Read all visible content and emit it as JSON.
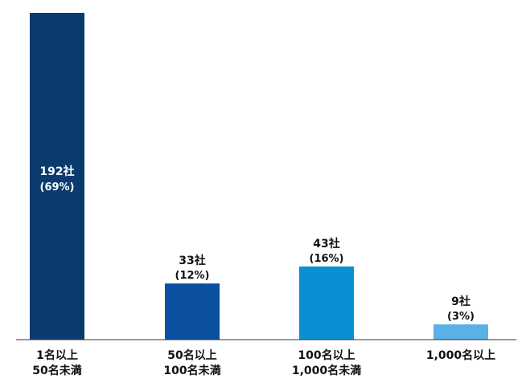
{
  "chart_data": {
    "type": "bar",
    "categories": [
      [
        "1名以上",
        "50名未満"
      ],
      [
        "50名以上",
        "100名未満"
      ],
      [
        "100名以上",
        "1,000名未満"
      ],
      [
        "1,000名以上"
      ]
    ],
    "values": [
      192,
      33,
      43,
      9
    ],
    "value_labels": [
      "192社",
      "33社",
      "43社",
      "9社"
    ],
    "percent_labels": [
      "(69%)",
      "(12%)",
      "(16%)",
      "(3%)"
    ],
    "colors": [
      "#0b3a6e",
      "#0a4fa0",
      "#0b8fd4",
      "#5bb0e6"
    ],
    "ylim": [
      0,
      192
    ],
    "title": "",
    "xlabel": "",
    "ylabel": "",
    "grid": false,
    "legend": "none"
  }
}
